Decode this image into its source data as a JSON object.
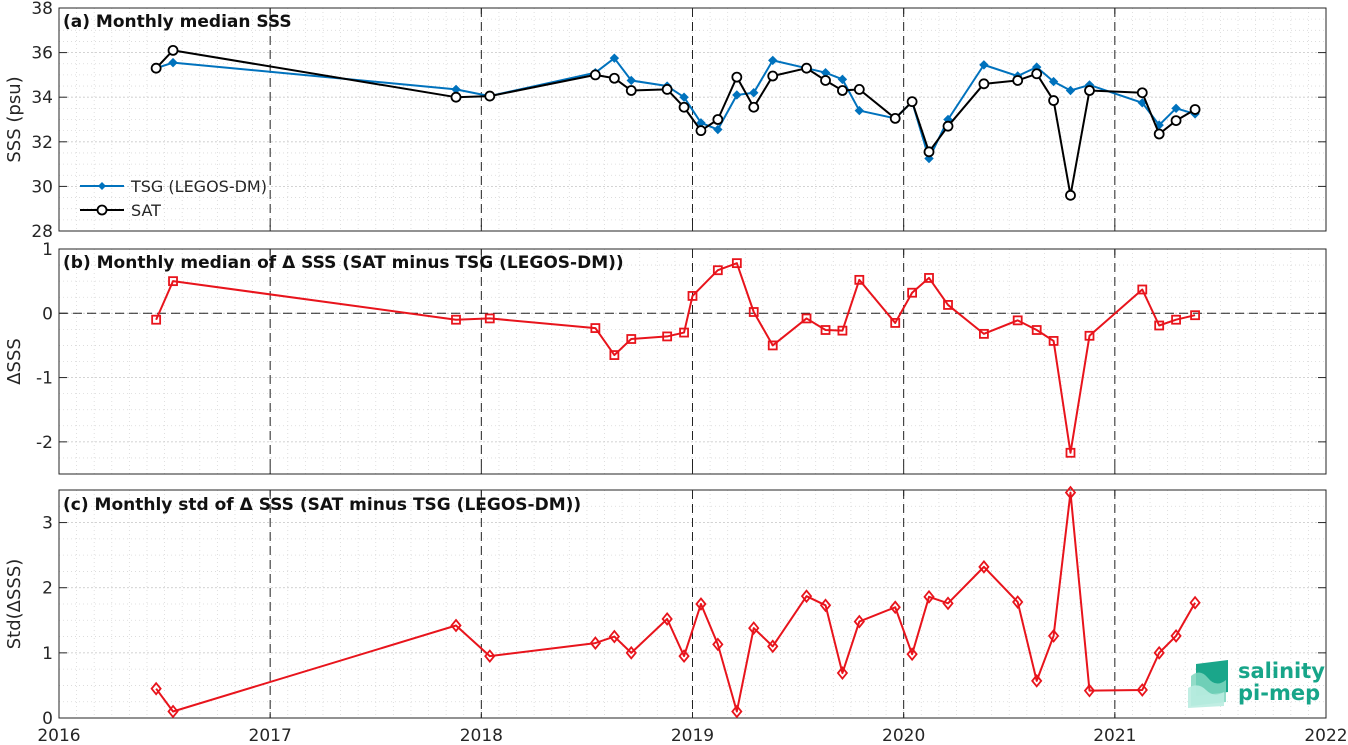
{
  "logo": {
    "line1": "salinity",
    "line2": "pi-mep"
  },
  "colors": {
    "tsg": "#0072BD",
    "sat": "#000000",
    "delta": "#e8141c",
    "logo": "#17a589"
  },
  "x_ticks": [
    "2016",
    "2017",
    "2018",
    "2019",
    "2020",
    "2021",
    "2022"
  ],
  "chart_data": [
    {
      "type": "line",
      "title": "(a) Monthly median SSS",
      "ylabel": "SSS (psu)",
      "xlim": [
        2016,
        2022
      ],
      "ylim": [
        28,
        38
      ],
      "yticks": [
        "28",
        "30",
        "32",
        "34",
        "36",
        "38"
      ],
      "grid": true,
      "legend_position": "lower-left",
      "series": [
        {
          "name": "TSG (LEGOS-DM)",
          "marker": "diamond",
          "x": [
            2016.46,
            2016.54,
            2017.88,
            2018.04,
            2018.54,
            2018.63,
            2018.71,
            2018.88,
            2018.96,
            2019.04,
            2019.12,
            2019.21,
            2019.29,
            2019.38,
            2019.54,
            2019.63,
            2019.71,
            2019.79,
            2019.96,
            2020.04,
            2020.12,
            2020.21,
            2020.38,
            2020.54,
            2020.63,
            2020.71,
            2020.79,
            2020.88,
            2021.13,
            2021.21,
            2021.29,
            2021.38
          ],
          "y": [
            35.3,
            35.55,
            34.35,
            34.05,
            35.1,
            35.75,
            34.75,
            34.5,
            34.0,
            32.85,
            32.55,
            34.1,
            34.2,
            35.65,
            35.3,
            35.1,
            34.8,
            33.4,
            33.05,
            33.8,
            31.25,
            33.0,
            35.45,
            34.95,
            35.35,
            34.7,
            34.3,
            34.55,
            33.75,
            32.75,
            33.5,
            33.25
          ]
        },
        {
          "name": "SAT",
          "marker": "circle",
          "x": [
            2016.46,
            2016.54,
            2017.88,
            2018.04,
            2018.54,
            2018.63,
            2018.71,
            2018.88,
            2018.96,
            2019.04,
            2019.12,
            2019.21,
            2019.29,
            2019.38,
            2019.54,
            2019.63,
            2019.71,
            2019.79,
            2019.96,
            2020.04,
            2020.12,
            2020.21,
            2020.38,
            2020.54,
            2020.63,
            2020.71,
            2020.79,
            2020.88,
            2021.13,
            2021.21,
            2021.29,
            2021.38
          ],
          "y": [
            35.3,
            36.1,
            34.0,
            34.05,
            35.0,
            34.85,
            34.3,
            34.35,
            33.55,
            32.5,
            33.0,
            34.9,
            33.55,
            34.95,
            35.3,
            34.75,
            34.3,
            34.35,
            33.05,
            33.8,
            31.55,
            32.7,
            34.6,
            34.75,
            35.05,
            33.85,
            29.6,
            34.3,
            34.2,
            32.35,
            32.95,
            33.45
          ]
        }
      ]
    },
    {
      "type": "line",
      "title": "(b) Monthly median of Δ SSS (SAT minus TSG (LEGOS-DM))",
      "ylabel": "ΔSSS",
      "xlim": [
        2016,
        2022
      ],
      "ylim": [
        -2.5,
        1
      ],
      "yticks": [
        "-2",
        "-1",
        "0",
        "1"
      ],
      "grid": true,
      "series": [
        {
          "marker": "square",
          "x": [
            2016.46,
            2016.54,
            2017.88,
            2018.04,
            2018.54,
            2018.63,
            2018.71,
            2018.88,
            2018.96,
            2019.0,
            2019.12,
            2019.21,
            2019.29,
            2019.38,
            2019.54,
            2019.63,
            2019.71,
            2019.79,
            2019.96,
            2020.04,
            2020.12,
            2020.21,
            2020.38,
            2020.54,
            2020.63,
            2020.71,
            2020.79,
            2020.88,
            2021.13,
            2021.21,
            2021.29,
            2021.38
          ],
          "y": [
            -0.1,
            0.5,
            -0.1,
            -0.08,
            -0.23,
            -0.65,
            -0.4,
            -0.36,
            -0.3,
            0.27,
            0.67,
            0.78,
            0.02,
            -0.5,
            -0.08,
            -0.26,
            -0.27,
            0.52,
            -0.15,
            0.32,
            0.55,
            0.13,
            -0.32,
            -0.11,
            -0.26,
            -0.43,
            -2.17,
            -0.35,
            0.37,
            -0.19,
            -0.1,
            -0.03
          ]
        }
      ]
    },
    {
      "type": "line",
      "title": "(c) Monthly std of Δ SSS (SAT minus TSG (LEGOS-DM))",
      "ylabel": "Std(ΔSSS)",
      "xlim": [
        2016,
        2022
      ],
      "ylim": [
        0,
        3.5
      ],
      "yticks": [
        "0",
        "1",
        "2",
        "3"
      ],
      "xticks": [
        "2016",
        "2017",
        "2018",
        "2019",
        "2020",
        "2021",
        "2022"
      ],
      "grid": true,
      "series": [
        {
          "marker": "diamond",
          "x": [
            2016.46,
            2016.54,
            2017.88,
            2018.04,
            2018.54,
            2018.63,
            2018.71,
            2018.88,
            2018.96,
            2019.04,
            2019.12,
            2019.21,
            2019.29,
            2019.38,
            2019.54,
            2019.63,
            2019.71,
            2019.79,
            2019.96,
            2020.04,
            2020.12,
            2020.21,
            2020.38,
            2020.54,
            2020.63,
            2020.71,
            2020.79,
            2020.88,
            2021.13,
            2021.21,
            2021.29,
            2021.38
          ],
          "y": [
            0.45,
            0.1,
            1.42,
            0.95,
            1.15,
            1.25,
            1.0,
            1.52,
            0.95,
            1.75,
            1.13,
            0.1,
            1.38,
            1.1,
            1.87,
            1.73,
            0.69,
            1.48,
            1.7,
            0.98,
            1.86,
            1.76,
            2.32,
            1.78,
            0.57,
            1.26,
            3.46,
            0.42,
            0.43,
            1.0,
            1.26,
            1.77
          ]
        }
      ]
    }
  ]
}
